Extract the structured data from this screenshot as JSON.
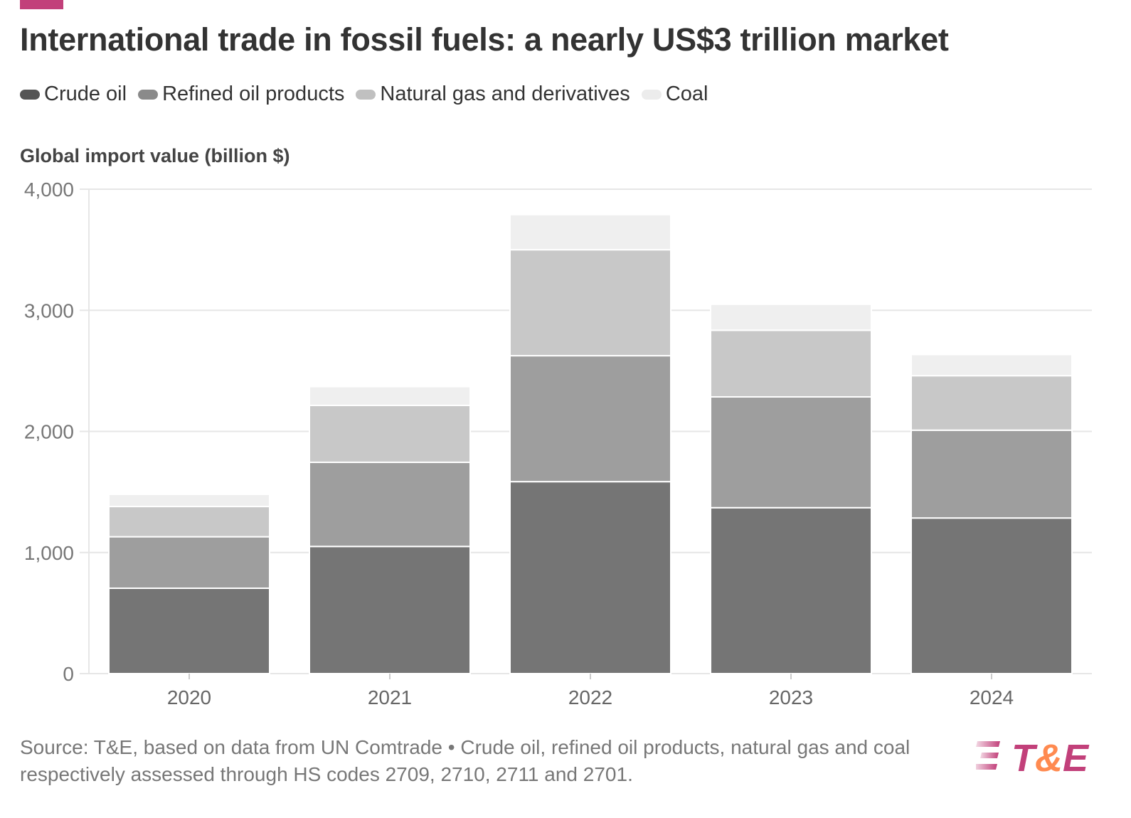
{
  "title": "International trade in fossil fuels: a nearly US$3 trillion market",
  "source": "Source: T&E, based on data from UN Comtrade • Crude oil, refined oil products, natural gas and coal respectively assessed through HS codes 2709, 2710, 2711 and 2701.",
  "logo_text": "T&E",
  "colors": {
    "accent": "#c2407a",
    "logo_orange": "#ff8a50"
  },
  "chart_data": {
    "type": "bar",
    "stacked": true,
    "title": "International trade in fossil fuels: a nearly US$3 trillion market",
    "ylabel": "Global import value (billion $)",
    "xlabel": "",
    "ylim": [
      0,
      4000
    ],
    "yticks": [
      0,
      1000,
      2000,
      3000,
      4000
    ],
    "ytick_labels": [
      "0",
      "1,000",
      "2,000",
      "3,000",
      "4,000"
    ],
    "grid": true,
    "legend": "top-left",
    "categories": [
      "2020",
      "2021",
      "2022",
      "2023",
      "2024"
    ],
    "series": [
      {
        "name": "Crude oil",
        "color": "#757575",
        "values": [
          705,
          1050,
          1585,
          1370,
          1285
        ]
      },
      {
        "name": "Refined oil products",
        "color": "#9e9e9e",
        "values": [
          425,
          695,
          1040,
          915,
          725
        ]
      },
      {
        "name": "Natural gas and derivatives",
        "color": "#c8c8c8",
        "values": [
          250,
          470,
          875,
          550,
          450
        ]
      },
      {
        "name": "Coal",
        "color": "#efefef",
        "values": [
          100,
          155,
          290,
          215,
          175
        ]
      }
    ]
  }
}
